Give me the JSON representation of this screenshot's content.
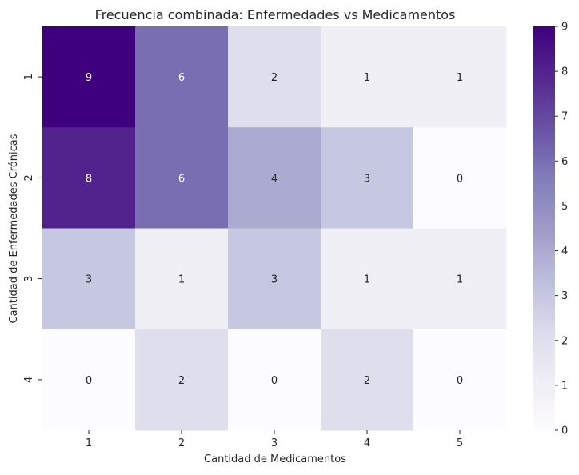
{
  "chart_data": {
    "type": "heatmap",
    "title": "Frecuencia combinada: Enfermedades vs Medicamentos",
    "xlabel": "Cantidad de Medicamentos",
    "ylabel": "Cantidad de Enfermedades Crónicas",
    "x_categories": [
      "1",
      "2",
      "3",
      "4",
      "5"
    ],
    "y_categories": [
      "1",
      "2",
      "3",
      "4"
    ],
    "values": [
      [
        9,
        6,
        2,
        1,
        1
      ],
      [
        8,
        6,
        4,
        3,
        0
      ],
      [
        3,
        1,
        3,
        1,
        1
      ],
      [
        0,
        2,
        0,
        2,
        0
      ]
    ],
    "colormap": "Purples",
    "vmin": 0,
    "vmax": 9,
    "colorbar_ticks": [
      "0",
      "1",
      "2",
      "3",
      "4",
      "5",
      "6",
      "7",
      "8",
      "9"
    ],
    "annotations": true
  }
}
